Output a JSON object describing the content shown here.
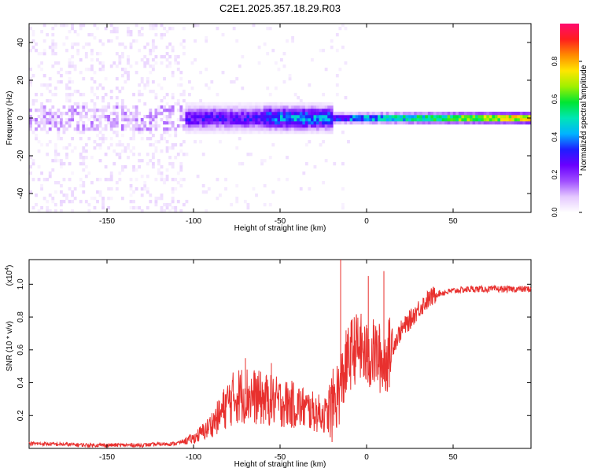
{
  "title": "C2E1.2025.357.18.29.R03",
  "chart_data": [
    {
      "type": "heatmap",
      "xlabel": "Height of straight line (km)",
      "ylabel": "Frequency (Hz)",
      "xlim": [
        -195,
        95
      ],
      "ylim": [
        -50,
        50
      ],
      "xticks": [
        -150,
        -100,
        -50,
        0,
        50
      ],
      "yticks": [
        -40,
        -20,
        0,
        20,
        40
      ],
      "xtick_labels": [
        "-150",
        "-100",
        "-50",
        "0",
        "50"
      ],
      "ytick_labels": [
        "-40",
        "-20",
        "0",
        "20",
        "40"
      ],
      "colorbar": {
        "label": "Normalized spectral amplitude",
        "range": [
          0,
          1
        ],
        "ticks": [
          0.0,
          0.2,
          0.4,
          0.6,
          0.8
        ],
        "tick_labels": [
          "0.0",
          "0.2",
          "0.4",
          "0.6",
          "0.8"
        ],
        "colormap": [
          "#ffffff",
          "#e4c8ff",
          "#9f4dff",
          "#6a00ff",
          "#1e1eff",
          "#00b4ff",
          "#00e6b4",
          "#00e632",
          "#a0f000",
          "#ffe600",
          "#ff8a00",
          "#ff1e1e",
          "#ff0a6e"
        ]
      },
      "regions": [
        {
          "x_range": [
            -195,
            -105
          ],
          "description": "scattered noise",
          "freq_halfwidth": 50,
          "max_amplitude": 0.05
        },
        {
          "x_range": [
            -105,
            -60
          ],
          "description": "broad signal",
          "freq_halfwidth": 5,
          "max_amplitude": 0.35
        },
        {
          "x_range": [
            -60,
            -20
          ],
          "description": "signal",
          "freq_halfwidth": 5,
          "max_amplitude": 0.5
        },
        {
          "x_range": [
            -20,
            95
          ],
          "description": "narrow carrier line",
          "freq_halfwidth": 2,
          "max_amplitude": 1.0
        }
      ]
    },
    {
      "type": "line",
      "xlabel": "Height of straight line (km)",
      "ylabel": "SNR (10 * v/v)",
      "scale_label": "(x10",
      "scale_exponent": "4",
      "xlim": [
        -195,
        95
      ],
      "ylim": [
        0,
        1.15
      ],
      "xticks": [
        -150,
        -100,
        -50,
        0,
        50
      ],
      "yticks": [
        0.2,
        0.4,
        0.6,
        0.8,
        1.0
      ],
      "xtick_labels": [
        "-150",
        "-100",
        "-50",
        "0",
        "50"
      ],
      "ytick_labels": [
        "0.2",
        "0.4",
        "0.6",
        "0.8",
        "1.0"
      ],
      "line_color": "#e8302e",
      "x": [
        -195,
        -160,
        -130,
        -110,
        -100,
        -92,
        -85,
        -80,
        -75,
        -70,
        -60,
        -50,
        -40,
        -30,
        -22,
        -18,
        -15,
        -12,
        -8,
        -4,
        0,
        5,
        10,
        15,
        20,
        25,
        30,
        35,
        40,
        50,
        60,
        70,
        80,
        95
      ],
      "y": [
        0.03,
        0.02,
        0.02,
        0.03,
        0.06,
        0.12,
        0.2,
        0.28,
        0.32,
        0.33,
        0.3,
        0.28,
        0.26,
        0.22,
        0.2,
        0.3,
        0.38,
        0.5,
        0.6,
        0.62,
        0.55,
        0.58,
        0.52,
        0.62,
        0.72,
        0.78,
        0.85,
        0.9,
        0.94,
        0.96,
        0.97,
        0.97,
        0.97,
        0.97
      ],
      "spikes": [
        {
          "x": -15,
          "y": 1.15
        },
        {
          "x": 10,
          "y": 1.08
        },
        {
          "x": 1,
          "y": 1.05
        },
        {
          "x": -70,
          "y": 0.55
        },
        {
          "x": -55,
          "y": 0.52
        }
      ]
    }
  ]
}
